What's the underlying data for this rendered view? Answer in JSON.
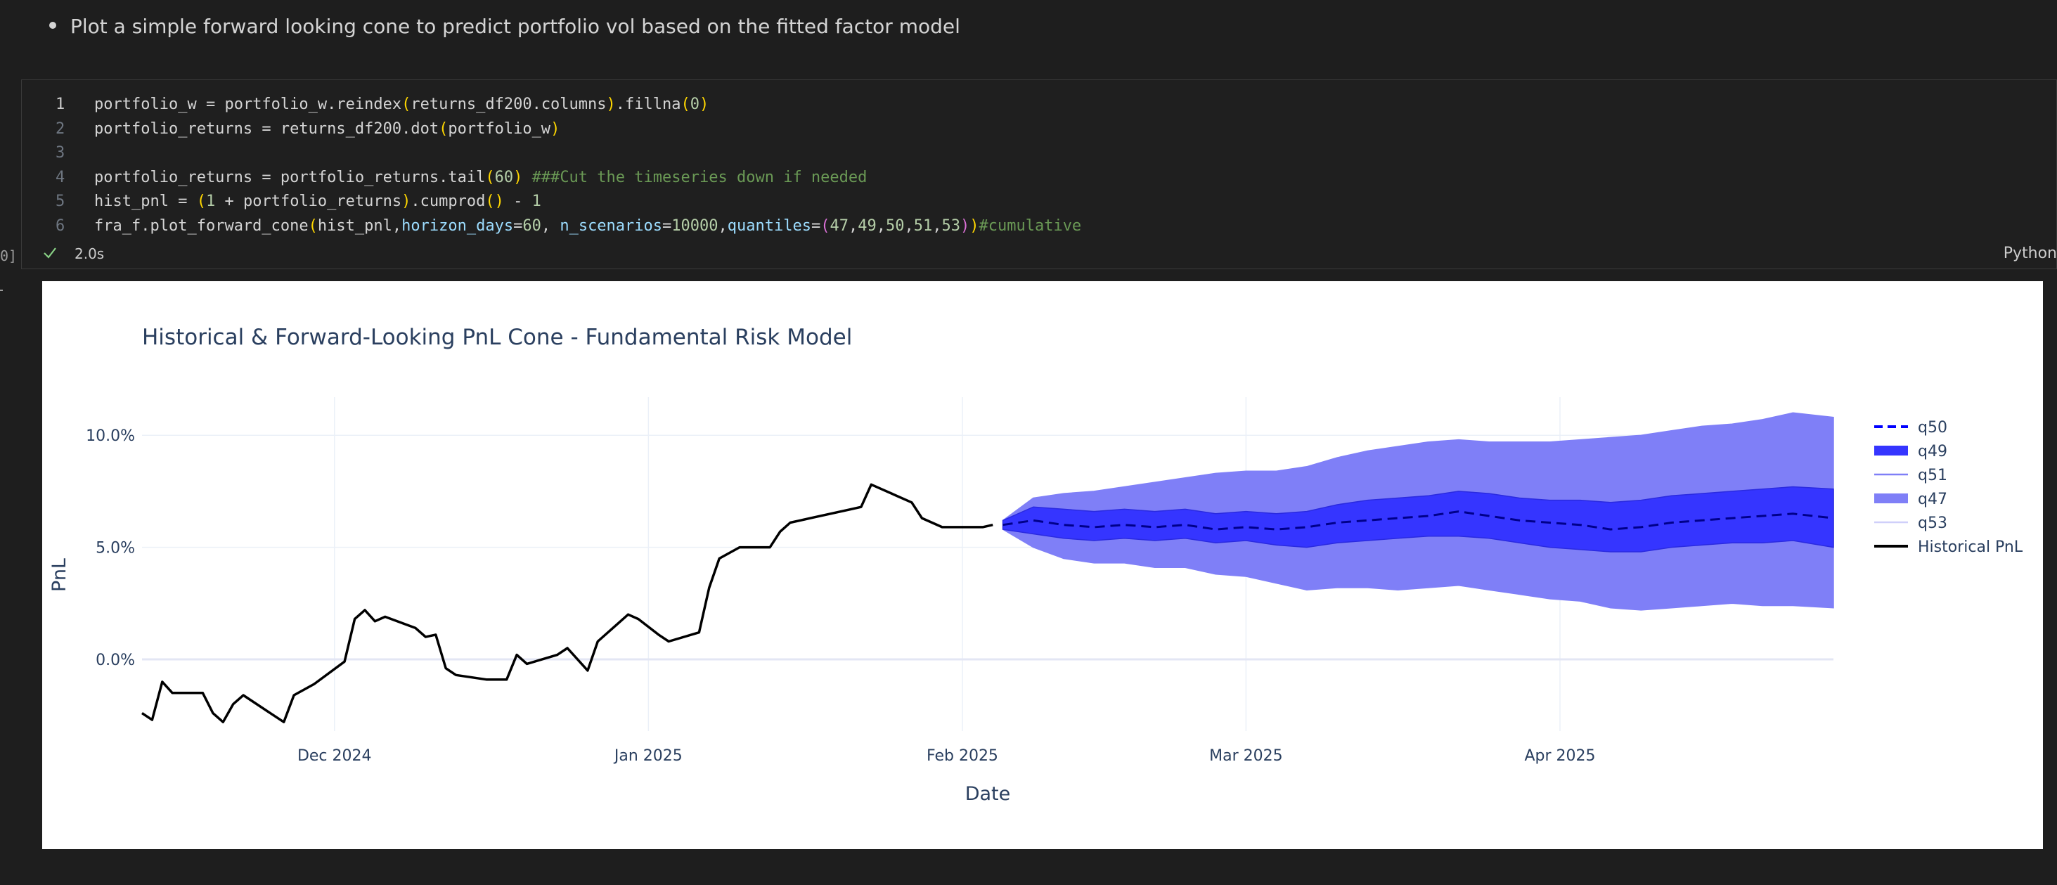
{
  "markdown": {
    "bullet_text": "Plot a simple forward looking cone to predict portfolio vol based on the fitted factor model"
  },
  "cell": {
    "gutter_label": "0]",
    "exec_time": "2.0s",
    "language": "Python",
    "lines": [
      {
        "num": "1",
        "active": true,
        "tokens": [
          [
            "portfolio_w",
            "#d4d4d4"
          ],
          [
            " = ",
            "#d4d4d4"
          ],
          [
            "portfolio_w",
            "#d4d4d4"
          ],
          [
            ".",
            "#d4d4d4"
          ],
          [
            "reindex",
            "#d4d4d4"
          ],
          [
            "(",
            "#ffd700"
          ],
          [
            "returns_df200",
            "#d4d4d4"
          ],
          [
            ".",
            "#d4d4d4"
          ],
          [
            "columns",
            "#d4d4d4"
          ],
          [
            ")",
            "#ffd700"
          ],
          [
            ".",
            "#d4d4d4"
          ],
          [
            "fillna",
            "#d4d4d4"
          ],
          [
            "(",
            "#ffd700"
          ],
          [
            "0",
            "#b5cea8"
          ],
          [
            ")",
            "#ffd700"
          ]
        ]
      },
      {
        "num": "2",
        "active": false,
        "tokens": [
          [
            "portfolio_returns",
            "#d4d4d4"
          ],
          [
            " = ",
            "#d4d4d4"
          ],
          [
            "returns_df200",
            "#d4d4d4"
          ],
          [
            ".",
            "#d4d4d4"
          ],
          [
            "dot",
            "#d4d4d4"
          ],
          [
            "(",
            "#ffd700"
          ],
          [
            "portfolio_w",
            "#d4d4d4"
          ],
          [
            ")",
            "#ffd700"
          ]
        ]
      },
      {
        "num": "3",
        "active": false,
        "tokens": []
      },
      {
        "num": "4",
        "active": false,
        "tokens": [
          [
            "portfolio_returns",
            "#d4d4d4"
          ],
          [
            " = ",
            "#d4d4d4"
          ],
          [
            "portfolio_returns",
            "#d4d4d4"
          ],
          [
            ".",
            "#d4d4d4"
          ],
          [
            "tail",
            "#d4d4d4"
          ],
          [
            "(",
            "#ffd700"
          ],
          [
            "60",
            "#b5cea8"
          ],
          [
            ")",
            "#ffd700"
          ],
          [
            " ",
            "#d4d4d4"
          ],
          [
            "###Cut the timeseries down if needed",
            "#6a9955"
          ]
        ]
      },
      {
        "num": "5",
        "active": false,
        "tokens": [
          [
            "hist_pnl",
            "#d4d4d4"
          ],
          [
            " = ",
            "#d4d4d4"
          ],
          [
            "(",
            "#ffd700"
          ],
          [
            "1",
            "#b5cea8"
          ],
          [
            " + ",
            "#d4d4d4"
          ],
          [
            "portfolio_returns",
            "#d4d4d4"
          ],
          [
            ")",
            "#ffd700"
          ],
          [
            ".",
            "#d4d4d4"
          ],
          [
            "cumprod",
            "#d4d4d4"
          ],
          [
            "()",
            "#ffd700"
          ],
          [
            " - ",
            "#d4d4d4"
          ],
          [
            "1",
            "#b5cea8"
          ]
        ]
      },
      {
        "num": "6",
        "active": false,
        "tokens": [
          [
            "fra_f",
            "#d4d4d4"
          ],
          [
            ".",
            "#d4d4d4"
          ],
          [
            "plot_forward_cone",
            "#d4d4d4"
          ],
          [
            "(",
            "#ffd700"
          ],
          [
            "hist_pnl",
            "#d4d4d4"
          ],
          [
            ",",
            "#d4d4d4"
          ],
          [
            "horizon_days",
            "#9cdcfe"
          ],
          [
            "=",
            "#d4d4d4"
          ],
          [
            "60",
            "#b5cea8"
          ],
          [
            ", ",
            "#d4d4d4"
          ],
          [
            "n_scenarios",
            "#9cdcfe"
          ],
          [
            "=",
            "#d4d4d4"
          ],
          [
            "10000",
            "#b5cea8"
          ],
          [
            ",",
            "#d4d4d4"
          ],
          [
            "quantiles",
            "#9cdcfe"
          ],
          [
            "=",
            "#d4d4d4"
          ],
          [
            "(",
            "#da70d6"
          ],
          [
            "47",
            "#b5cea8"
          ],
          [
            ",",
            "#d4d4d4"
          ],
          [
            "49",
            "#b5cea8"
          ],
          [
            ",",
            "#d4d4d4"
          ],
          [
            "50",
            "#b5cea8"
          ],
          [
            ",",
            "#d4d4d4"
          ],
          [
            "51",
            "#b5cea8"
          ],
          [
            ",",
            "#d4d4d4"
          ],
          [
            "53",
            "#b5cea8"
          ],
          [
            ")",
            "#da70d6"
          ],
          [
            ")",
            "#ffd700"
          ],
          [
            "#cumulative",
            "#6a9955"
          ]
        ]
      }
    ]
  },
  "chart_data": {
    "type": "line",
    "title": "Historical & Forward-Looking PnL Cone - Fundamental Risk Model",
    "xlabel": "Date",
    "ylabel": "PnL",
    "x_tick_labels": [
      "Dec 2024",
      "Jan 2025",
      "Feb 2025",
      "Mar 2025",
      "Apr 2025"
    ],
    "x_tick_dates": [
      "2024-12-01",
      "2025-01-01",
      "2025-02-01",
      "2025-03-01",
      "2025-04-01"
    ],
    "xlim": [
      "2024-11-12",
      "2025-04-28"
    ],
    "y_tick_labels": [
      "0.0%",
      "5.0%",
      "10.0%"
    ],
    "y_ticks": [
      0,
      0.05,
      0.1
    ],
    "ylim": [
      -0.032,
      0.117
    ],
    "grid": true,
    "legend_position": "right",
    "legend": [
      {
        "name": "q50",
        "style": "dash",
        "color": "#0000ff"
      },
      {
        "name": "q49",
        "style": "band",
        "color": "#3535ff"
      },
      {
        "name": "q51",
        "style": "line",
        "color": "#7f7ff7"
      },
      {
        "name": "q47",
        "style": "band",
        "color": "#7f7ff7"
      },
      {
        "name": "q53",
        "style": "line",
        "color": "#cfcffa"
      },
      {
        "name": "Historical PnL",
        "style": "solid",
        "color": "#000000"
      }
    ],
    "historical": {
      "name": "Historical PnL",
      "x": [
        "2024-11-12",
        "2024-11-13",
        "2024-11-14",
        "2024-11-15",
        "2024-11-18",
        "2024-11-19",
        "2024-11-20",
        "2024-11-21",
        "2024-11-22",
        "2024-11-25",
        "2024-11-26",
        "2024-11-27",
        "2024-11-29",
        "2024-12-02",
        "2024-12-03",
        "2024-12-04",
        "2024-12-05",
        "2024-12-06",
        "2024-12-09",
        "2024-12-10",
        "2024-12-11",
        "2024-12-12",
        "2024-12-13",
        "2024-12-16",
        "2024-12-17",
        "2024-12-18",
        "2024-12-19",
        "2024-12-20",
        "2024-12-23",
        "2024-12-24",
        "2024-12-26",
        "2024-12-27",
        "2024-12-30",
        "2024-12-31",
        "2025-01-02",
        "2025-01-03",
        "2025-01-06",
        "2025-01-07",
        "2025-01-08",
        "2025-01-10",
        "2025-01-13",
        "2025-01-14",
        "2025-01-15",
        "2025-01-16",
        "2025-01-17",
        "2025-01-21",
        "2025-01-22",
        "2025-01-23",
        "2025-01-24",
        "2025-01-27",
        "2025-01-28",
        "2025-01-29",
        "2025-01-30",
        "2025-01-31",
        "2025-02-03",
        "2025-02-04"
      ],
      "y": [
        -0.024,
        -0.027,
        -0.01,
        -0.015,
        -0.015,
        -0.024,
        -0.028,
        -0.02,
        -0.016,
        -0.025,
        -0.028,
        -0.016,
        -0.011,
        -0.001,
        0.018,
        0.022,
        0.017,
        0.019,
        0.014,
        0.01,
        0.011,
        -0.004,
        -0.007,
        -0.009,
        -0.009,
        -0.009,
        0.002,
        -0.002,
        0.002,
        0.005,
        -0.005,
        0.008,
        0.02,
        0.018,
        0.011,
        0.008,
        0.012,
        0.032,
        0.045,
        0.05,
        0.05,
        0.057,
        0.061,
        0.062,
        0.063,
        0.067,
        0.068,
        0.078,
        0.076,
        0.07,
        0.063,
        0.061,
        0.059,
        0.059,
        0.059,
        0.06
      ]
    },
    "forecast": {
      "x": [
        "2025-02-05",
        "2025-02-08",
        "2025-02-11",
        "2025-02-14",
        "2025-02-17",
        "2025-02-20",
        "2025-02-23",
        "2025-02-26",
        "2025-03-01",
        "2025-03-04",
        "2025-03-07",
        "2025-03-10",
        "2025-03-13",
        "2025-03-16",
        "2025-03-19",
        "2025-03-22",
        "2025-03-25",
        "2025-03-28",
        "2025-03-31",
        "2025-04-03",
        "2025-04-06",
        "2025-04-09",
        "2025-04-12",
        "2025-04-15",
        "2025-04-18",
        "2025-04-21",
        "2025-04-24",
        "2025-04-28"
      ],
      "q50": [
        0.06,
        0.062,
        0.06,
        0.059,
        0.06,
        0.059,
        0.06,
        0.058,
        0.059,
        0.058,
        0.059,
        0.061,
        0.062,
        0.063,
        0.064,
        0.066,
        0.064,
        0.062,
        0.061,
        0.06,
        0.058,
        0.059,
        0.061,
        0.062,
        0.063,
        0.064,
        0.065,
        0.063
      ],
      "q49_q51_lower": [
        0.058,
        0.056,
        0.054,
        0.053,
        0.054,
        0.053,
        0.054,
        0.052,
        0.053,
        0.051,
        0.05,
        0.052,
        0.053,
        0.054,
        0.055,
        0.055,
        0.054,
        0.052,
        0.05,
        0.049,
        0.048,
        0.048,
        0.05,
        0.051,
        0.052,
        0.052,
        0.053,
        0.05
      ],
      "q49_q51_upper": [
        0.062,
        0.068,
        0.067,
        0.066,
        0.067,
        0.066,
        0.067,
        0.065,
        0.066,
        0.065,
        0.066,
        0.069,
        0.071,
        0.072,
        0.073,
        0.075,
        0.074,
        0.072,
        0.071,
        0.071,
        0.07,
        0.071,
        0.073,
        0.074,
        0.075,
        0.076,
        0.077,
        0.076
      ],
      "q47_q53_lower": [
        0.058,
        0.05,
        0.045,
        0.043,
        0.043,
        0.041,
        0.041,
        0.038,
        0.037,
        0.034,
        0.031,
        0.032,
        0.032,
        0.031,
        0.032,
        0.033,
        0.031,
        0.029,
        0.027,
        0.026,
        0.023,
        0.022,
        0.023,
        0.024,
        0.025,
        0.024,
        0.024,
        0.023
      ],
      "q47_q53_upper": [
        0.062,
        0.072,
        0.074,
        0.075,
        0.077,
        0.079,
        0.081,
        0.083,
        0.084,
        0.084,
        0.086,
        0.09,
        0.093,
        0.095,
        0.097,
        0.098,
        0.097,
        0.097,
        0.097,
        0.098,
        0.099,
        0.1,
        0.102,
        0.104,
        0.105,
        0.107,
        0.11,
        0.108
      ]
    },
    "colors": {
      "inner_band": "#3535ff",
      "outer_band": "#7f7ff7",
      "median": "#00008b",
      "historical": "#000000"
    }
  }
}
